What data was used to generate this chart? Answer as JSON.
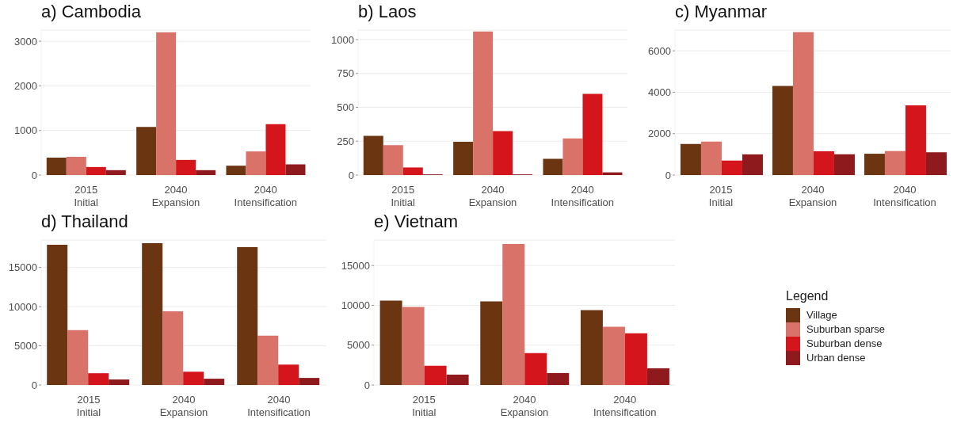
{
  "chart_data": [
    {
      "type": "bar",
      "title": "a) Cambodia",
      "categories": [
        "2015\nInitial",
        "2040\nExpansion",
        "2040\nIntensification"
      ],
      "ylim": [
        0,
        3250
      ],
      "yticks": [
        0,
        1000,
        2000,
        3000
      ],
      "grid": "y",
      "legend": false,
      "series": [
        {
          "color": "#6b3512",
          "values": [
            390,
            1080,
            210
          ]
        },
        {
          "color": "#d9736a",
          "values": [
            410,
            3200,
            530
          ]
        },
        {
          "color": "#d4161c",
          "values": [
            180,
            340,
            1140
          ]
        },
        {
          "color": "#8f1a1e",
          "values": [
            110,
            110,
            240
          ]
        }
      ]
    },
    {
      "type": "bar",
      "title": "b) Laos",
      "categories": [
        "2015\nInitial",
        "2040\nExpansion",
        "2040\nIntensification"
      ],
      "ylim": [
        0,
        1070
      ],
      "yticks": [
        0,
        250,
        500,
        750,
        1000
      ],
      "grid": "y",
      "legend": false,
      "series": [
        {
          "color": "#6b3512",
          "values": [
            290,
            245,
            120
          ]
        },
        {
          "color": "#d9736a",
          "values": [
            220,
            1060,
            270
          ]
        },
        {
          "color": "#d4161c",
          "values": [
            56,
            325,
            600
          ]
        },
        {
          "color": "#8f1a1e",
          "values": [
            5,
            5,
            20
          ]
        }
      ]
    },
    {
      "type": "bar",
      "title": "c) Myanmar",
      "categories": [
        "2015\nInitial",
        "2040\nExpansion",
        "2040\nIntensification"
      ],
      "ylim": [
        0,
        7000
      ],
      "yticks": [
        0,
        2000,
        4000,
        6000
      ],
      "grid": "y",
      "legend": false,
      "series": [
        {
          "color": "#6b3512",
          "values": [
            1500,
            4300,
            1030
          ]
        },
        {
          "color": "#d9736a",
          "values": [
            1620,
            6900,
            1160
          ]
        },
        {
          "color": "#d4161c",
          "values": [
            700,
            1150,
            3370
          ]
        },
        {
          "color": "#8f1a1e",
          "values": [
            1000,
            1000,
            1100
          ]
        }
      ]
    },
    {
      "type": "bar",
      "title": "d) Thailand",
      "categories": [
        "2015\nInitial",
        "2040\nExpansion",
        "2040\nIntensification"
      ],
      "ylim": [
        0,
        18500
      ],
      "yticks": [
        0,
        5000,
        10000,
        15000
      ],
      "grid": "y",
      "legend": false,
      "series": [
        {
          "color": "#6b3512",
          "values": [
            17900,
            18100,
            17600
          ]
        },
        {
          "color": "#d9736a",
          "values": [
            7000,
            9400,
            6300
          ]
        },
        {
          "color": "#d4161c",
          "values": [
            1500,
            1700,
            2600
          ]
        },
        {
          "color": "#8f1a1e",
          "values": [
            700,
            800,
            900
          ]
        }
      ]
    },
    {
      "type": "bar",
      "title": "e) Vietnam",
      "categories": [
        "2015\nInitial",
        "2040\nExpansion",
        "2040\nIntensification"
      ],
      "ylim": [
        0,
        18200
      ],
      "yticks": [
        0,
        5000,
        10000,
        15000
      ],
      "grid": "y",
      "legend": "right",
      "legend_title": "Legend",
      "series": [
        {
          "name": "Village",
          "color": "#6b3512",
          "values": [
            10600,
            10500,
            9400
          ]
        },
        {
          "name": "Suburban sparse",
          "color": "#d9736a",
          "values": [
            9800,
            17700,
            7300
          ]
        },
        {
          "name": "Suburban dense",
          "color": "#d4161c",
          "values": [
            2400,
            4000,
            6500
          ]
        },
        {
          "name": "Urban dense",
          "color": "#8f1a1e",
          "values": [
            1300,
            1500,
            2100
          ]
        }
      ]
    }
  ]
}
